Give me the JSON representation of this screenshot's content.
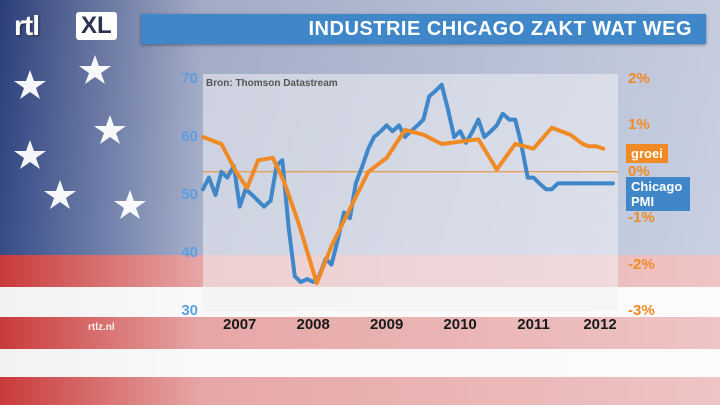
{
  "header": {
    "logo_rtl": "rtl",
    "logo_xl": "XL",
    "title": "INDUSTRIE CHICAGO ZAKT WAT WEG"
  },
  "footer": {
    "credit": "rtlz.nl"
  },
  "colors": {
    "pmi": "#3f87c9",
    "groei": "#f08a24",
    "title_bar": "#3f87c9"
  },
  "chart_data": {
    "type": "line",
    "source": "Bron: Thomson Datastream",
    "x_ticks": [
      "2007",
      "2008",
      "2009",
      "2010",
      "2011",
      "2012"
    ],
    "y_left_ticks": [
      "70",
      "60",
      "50",
      "40",
      "30"
    ],
    "y_right_ticks": [
      "2%",
      "1%",
      "0%",
      "-1%",
      "-2%",
      "-3%"
    ],
    "ylim_left": [
      30,
      70
    ],
    "ylim_right": [
      -3,
      2
    ],
    "series": [
      {
        "name": "Chicago PMI",
        "axis": "left",
        "x": [
          2006.75,
          2006.83,
          2006.92,
          2007.0,
          2007.08,
          2007.17,
          2007.25,
          2007.33,
          2007.42,
          2007.5,
          2007.58,
          2007.67,
          2007.75,
          2007.83,
          2007.92,
          2008.0,
          2008.08,
          2008.17,
          2008.25,
          2008.33,
          2008.42,
          2008.5,
          2008.58,
          2008.67,
          2008.75,
          2008.83,
          2008.92,
          2009.0,
          2009.08,
          2009.17,
          2009.25,
          2009.33,
          2009.42,
          2009.5,
          2009.58,
          2009.67,
          2009.75,
          2009.83,
          2009.92,
          2010.0,
          2010.08,
          2010.17,
          2010.25,
          2010.33,
          2010.42,
          2010.5,
          2010.58,
          2010.67,
          2010.75,
          2010.83,
          2010.92,
          2011.0,
          2011.08,
          2011.17,
          2011.25,
          2011.33,
          2011.42,
          2011.5,
          2011.58,
          2011.67,
          2011.75,
          2011.83,
          2011.92,
          2012.0,
          2012.08,
          2012.17,
          2012.25,
          2012.33
        ],
        "values": [
          51,
          53,
          50,
          54,
          53,
          55,
          48,
          51,
          50,
          49,
          48,
          49,
          55,
          56,
          44,
          36,
          35,
          35.5,
          35,
          36,
          39,
          38,
          42,
          47,
          46,
          52,
          55,
          58,
          60,
          61,
          62,
          61,
          62,
          60,
          61,
          62,
          63,
          67,
          68,
          69,
          65,
          60,
          61,
          59,
          61,
          63,
          60,
          61,
          62,
          64,
          63,
          63,
          59,
          53,
          53,
          52,
          51,
          51,
          52,
          52,
          52,
          52,
          52,
          52,
          52,
          52,
          52,
          52
        ]
      },
      {
        "name": "groei",
        "axis": "right",
        "x": [
          2006.75,
          2007.0,
          2007.2,
          2007.35,
          2007.5,
          2007.7,
          2007.85,
          2008.05,
          2008.3,
          2008.5,
          2008.75,
          2009.0,
          2009.25,
          2009.5,
          2009.75,
          2010.0,
          2010.25,
          2010.5,
          2010.75,
          2011.0,
          2011.25,
          2011.5,
          2011.75,
          2011.92,
          2012.0,
          2012.1,
          2012.2
        ],
        "values": [
          0.75,
          0.6,
          0.0,
          -0.35,
          0.25,
          0.3,
          -0.2,
          -1.1,
          -2.4,
          -1.6,
          -0.8,
          0.0,
          0.3,
          0.9,
          0.8,
          0.6,
          0.65,
          0.7,
          0.05,
          0.6,
          0.5,
          0.95,
          0.8,
          0.6,
          0.55,
          0.55,
          0.5
        ]
      }
    ],
    "legend": [
      {
        "label": "groei",
        "color": "#f08a24"
      },
      {
        "label": "Chicago PMI",
        "color": "#3f87c9"
      }
    ]
  }
}
